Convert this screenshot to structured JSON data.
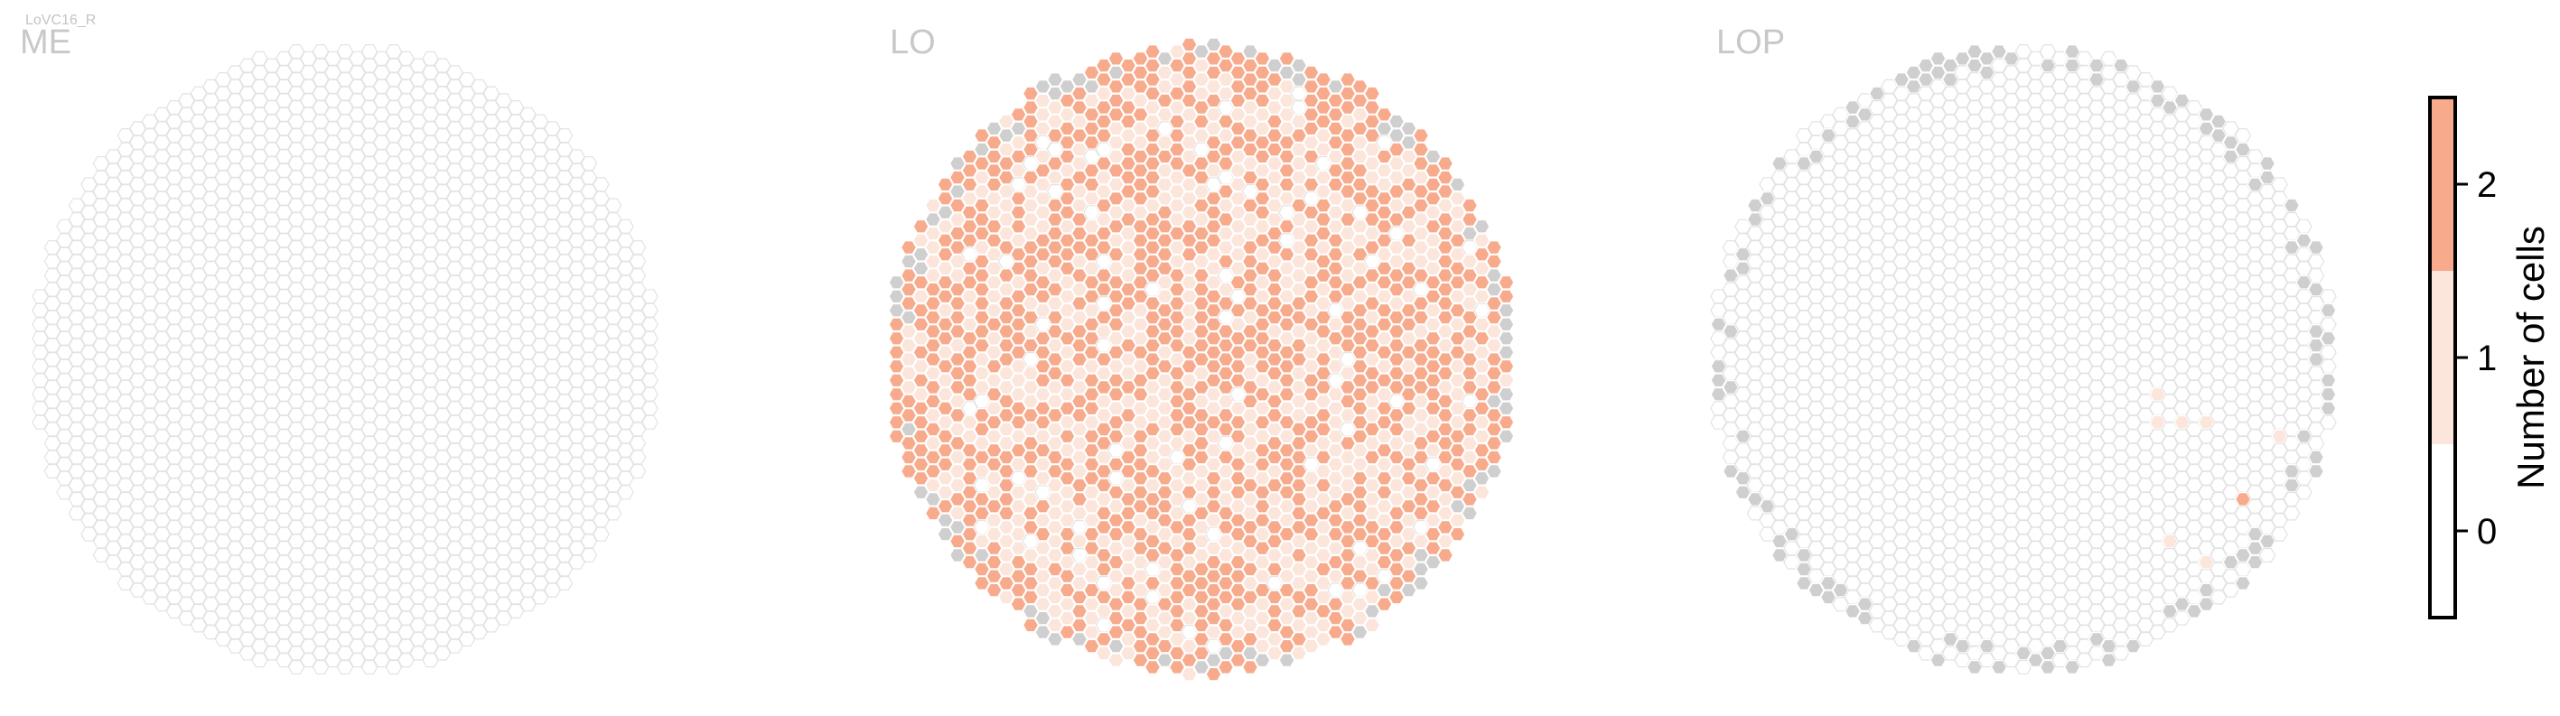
{
  "figure": {
    "subtitle": "LoVC16_R",
    "panels": [
      {
        "id": "me",
        "title": "ME"
      },
      {
        "id": "lo",
        "title": "LO"
      },
      {
        "id": "lop",
        "title": "LOP"
      }
    ]
  },
  "colorbar": {
    "label": "Number of cells",
    "ticks": [
      "0",
      "1",
      "2"
    ]
  },
  "colors": {
    "zero": "#ffffff",
    "one": "#fce5db",
    "two": "#f7ab8c",
    "missing": "#cfcfcf",
    "empty_stroke": "#e3e3e3"
  },
  "chart_data": [
    {
      "type": "heatmap",
      "panel": "ME",
      "description_of_values": "hexagonal column map; every column has 0 cells",
      "counts": {
        "0": "all",
        "1": 0,
        "2": 0
      },
      "vmin": -0.5,
      "vmax": 2.5
    },
    {
      "type": "heatmap",
      "panel": "LO",
      "description_of_values": "hexagonal column map; most columns have 1 or 2 cells, a few 0, some rim columns missing (grey)",
      "approx_fraction": {
        "2": 0.55,
        "1": 0.38,
        "0": 0.04
      },
      "vmin": -0.5,
      "vmax": 2.5
    },
    {
      "type": "heatmap",
      "panel": "LOP",
      "description_of_values": "hexagonal column map; nearly all 0, rim columns missing (grey), a few interior columns with 1 cell and one with 2",
      "one_cell_columns": 6,
      "two_cell_columns": 1,
      "vmin": -0.5,
      "vmax": 2.5
    }
  ]
}
